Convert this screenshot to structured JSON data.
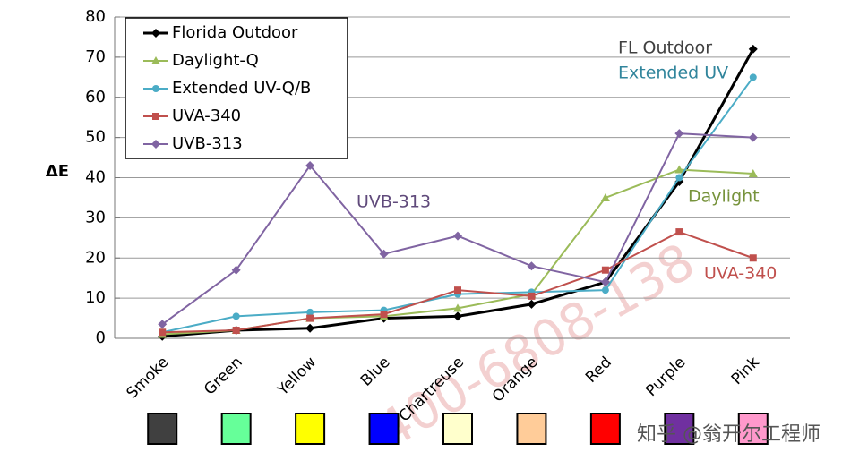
{
  "chart_data": {
    "type": "line",
    "ylabel": "ΔE",
    "categories": [
      "Smoke",
      "Green",
      "Yellow",
      "Blue",
      "Chartreuse",
      "Orange",
      "Red",
      "Purple",
      "Pink"
    ],
    "series": [
      {
        "name": "Florida Outdoor",
        "color": "#000000",
        "marker": "diamond",
        "values": [
          0.5,
          2,
          2.5,
          5,
          5.5,
          8.5,
          14,
          39,
          72
        ]
      },
      {
        "name": "Daylight-Q",
        "color": "#9bbb59",
        "marker": "triangle",
        "values": [
          1,
          2,
          5,
          5.5,
          7.5,
          11,
          35,
          42,
          41
        ]
      },
      {
        "name": "Extended UV-Q/B",
        "color": "#4bacc6",
        "marker": "circle",
        "values": [
          1.5,
          5.5,
          6.5,
          7,
          11,
          11.5,
          12,
          40,
          65
        ]
      },
      {
        "name": "UVA-340",
        "color": "#c0504d",
        "marker": "square",
        "values": [
          1.5,
          2,
          5,
          6,
          12,
          10.5,
          17,
          26.5,
          20
        ]
      },
      {
        "name": "UVB-313",
        "color": "#8064a2",
        "marker": "diamond",
        "values": [
          3.5,
          17,
          43,
          21,
          25.5,
          18,
          14,
          51,
          50
        ]
      }
    ],
    "ylim": [
      0,
      80
    ],
    "yticks": [
      0,
      10,
      20,
      30,
      40,
      50,
      60,
      70,
      80
    ],
    "grid": true,
    "legend": "top-left",
    "annotations": [
      {
        "text": "FL Outdoor",
        "color": "#404040"
      },
      {
        "text": "Extended UV",
        "color": "#31859c"
      },
      {
        "text": "Daylight",
        "color": "#77933c"
      },
      {
        "text": "UVA-340",
        "color": "#c0504d"
      },
      {
        "text": "UVB-313",
        "color": "#604a7b"
      }
    ],
    "watermarks": [
      "400-6808-138",
      "知乎 @翁开尔工程师"
    ]
  }
}
